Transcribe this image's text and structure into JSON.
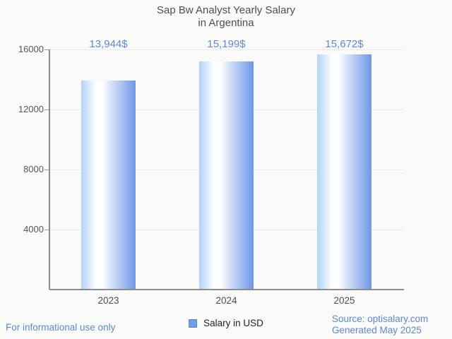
{
  "title": {
    "line1": "Sap Bw Analyst Yearly Salary",
    "line2": "in Argentina"
  },
  "legend": {
    "label": "Salary in USD",
    "swatch_color": "#6d9eec"
  },
  "footer": {
    "disclaimer": "For informational use only",
    "source_line1": "Source: optisalary.com",
    "source_line2": "Generated May 2025"
  },
  "colors": {
    "accent_text": "#5e87dc",
    "bar_light": "#b2d3f8",
    "bar_dark": "#6e97e8",
    "axis": "#8c8c8c",
    "grid": "#ebebeb",
    "title_text": "#4e4f52",
    "tick_text": "#57585a",
    "background": "#fafaf8"
  },
  "chart_data": {
    "type": "bar",
    "title": "Sap Bw Analyst Yearly Salary in Argentina",
    "categories": [
      "2023",
      "2024",
      "2025"
    ],
    "series": [
      {
        "name": "Salary in USD",
        "values": [
          13944,
          15199,
          15672
        ]
      }
    ],
    "value_labels": [
      "13,944$",
      "15,199$",
      "15,672$"
    ],
    "xlabel": "",
    "ylabel": "",
    "ylim": [
      0,
      16000
    ],
    "yticks": [
      4000,
      8000,
      12000,
      16000
    ],
    "grid": true,
    "legend_position": "bottom"
  }
}
